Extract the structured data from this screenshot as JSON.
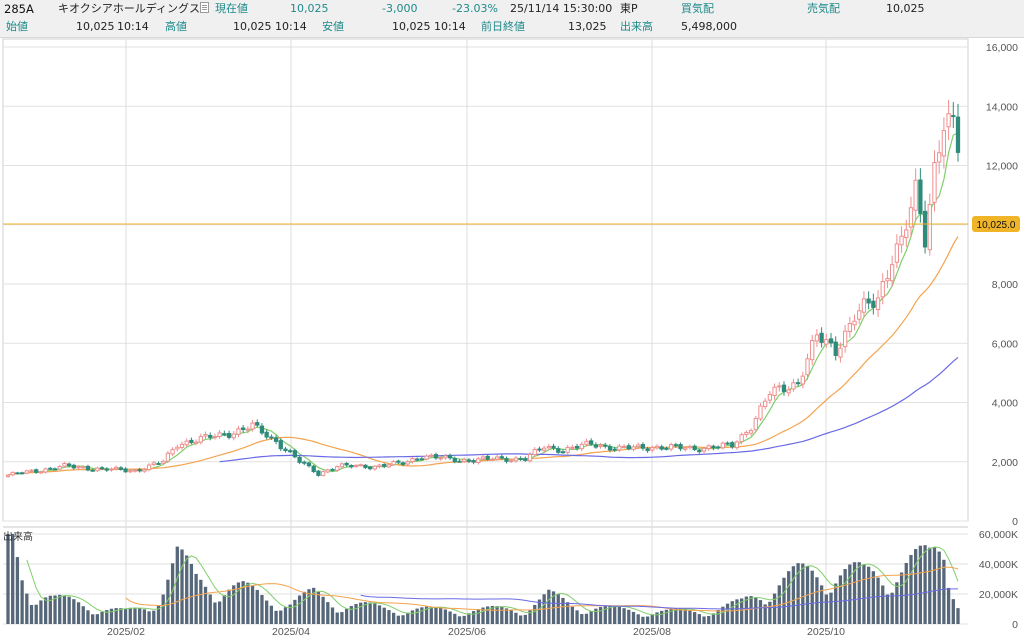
{
  "quote": {
    "code": "285A",
    "name": "キオクシアホールディングス",
    "current_label": "現在値",
    "current_value": "10,025",
    "change": "-3,000",
    "change_pct": "-23.03%",
    "datetime": "25/11/14  15:30:00",
    "market": "東P",
    "bid_label": "買気配",
    "bid_value": "",
    "ask_label": "売気配",
    "ask_value": "10,025",
    "open_label": "始値",
    "open_value": "10,025",
    "open_time": "10:14",
    "high_label": "高値",
    "high_value": "10,025",
    "high_time": "10:14",
    "low_label": "安値",
    "low_value": "10,025",
    "low_time": "10:14",
    "prev_close_label": "前日終値",
    "prev_close_value": "13,025",
    "volume_label": "出来高",
    "volume_value": "5,498,000"
  },
  "colors": {
    "up": "#ef8f8f",
    "down": "#2e8b7a",
    "ma_short": "#7fcf6a",
    "ma_mid": "#f5a34e",
    "ma_long": "#6a6ae6",
    "price_line": "#f0b429",
    "volume_bar": "#56677a"
  },
  "chart_data": {
    "type": "candlestick",
    "price_axis": {
      "ylim": [
        0,
        16000
      ],
      "ticks": [
        "0",
        "2,000",
        "4,000",
        "6,000",
        "8,000",
        "10,000",
        "12,000",
        "14,000",
        "16,000"
      ]
    },
    "volume_axis": {
      "label": "出来高",
      "ylim": [
        0,
        60000
      ],
      "ticks": [
        "0",
        "20,000K",
        "40,000K",
        "60,000K"
      ]
    },
    "x_labels": [
      "2025/02",
      "2025/04",
      "2025/06",
      "2025/08",
      "2025/10"
    ],
    "current_price_line": {
      "value": 10025,
      "label": "10,025.0"
    },
    "anchors": [
      [
        0,
        1550
      ],
      [
        6,
        1700
      ],
      [
        12,
        1850
      ],
      [
        20,
        1750
      ],
      [
        27,
        1700
      ],
      [
        33,
        2000
      ],
      [
        36,
        2600
      ],
      [
        42,
        2800
      ],
      [
        48,
        3000
      ],
      [
        52,
        3200
      ],
      [
        57,
        2700
      ],
      [
        62,
        2000
      ],
      [
        66,
        1600
      ],
      [
        70,
        1850
      ],
      [
        78,
        1850
      ],
      [
        84,
        1950
      ],
      [
        88,
        2200
      ],
      [
        96,
        2050
      ],
      [
        105,
        2100
      ],
      [
        110,
        2100
      ],
      [
        114,
        2500
      ],
      [
        118,
        2400
      ],
      [
        124,
        2600
      ],
      [
        130,
        2450
      ],
      [
        138,
        2500
      ],
      [
        146,
        2450
      ],
      [
        154,
        2550
      ],
      [
        158,
        3200
      ],
      [
        162,
        4300
      ],
      [
        168,
        4700
      ],
      [
        172,
        6200
      ],
      [
        176,
        5800
      ],
      [
        180,
        6900
      ],
      [
        185,
        7500
      ],
      [
        188,
        9000
      ],
      [
        190,
        9400
      ],
      [
        193,
        11000
      ],
      [
        195,
        9600
      ],
      [
        197,
        12000
      ],
      [
        199,
        13600
      ],
      [
        200,
        13400
      ],
      [
        201,
        13200
      ],
      [
        202,
        12500
      ]
    ],
    "volume_anchors": [
      [
        0,
        55
      ],
      [
        3,
        28
      ],
      [
        5,
        20
      ],
      [
        10,
        14
      ],
      [
        15,
        12
      ],
      [
        20,
        9
      ],
      [
        25,
        7
      ],
      [
        30,
        10
      ],
      [
        33,
        22
      ],
      [
        36,
        38
      ],
      [
        40,
        25
      ],
      [
        45,
        22
      ],
      [
        50,
        20
      ],
      [
        55,
        15
      ],
      [
        60,
        12
      ],
      [
        65,
        17
      ],
      [
        70,
        12
      ],
      [
        80,
        9
      ],
      [
        90,
        8
      ],
      [
        100,
        8
      ],
      [
        110,
        9
      ],
      [
        115,
        16
      ],
      [
        120,
        11
      ],
      [
        130,
        8
      ],
      [
        140,
        7
      ],
      [
        150,
        8
      ],
      [
        156,
        12
      ],
      [
        162,
        22
      ],
      [
        168,
        28
      ],
      [
        175,
        31
      ],
      [
        182,
        28
      ],
      [
        190,
        32
      ],
      [
        196,
        38
      ],
      [
        199,
        50
      ],
      [
        202,
        12
      ]
    ]
  }
}
